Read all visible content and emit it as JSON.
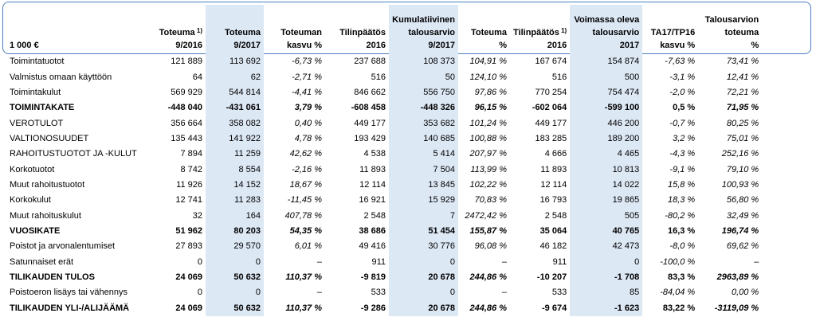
{
  "headers": [
    {
      "lines": [
        "",
        "1 000 €"
      ]
    },
    {
      "lines": [
        "Toteuma",
        "9/2016"
      ],
      "sup": "1)"
    },
    {
      "lines": [
        "Toteuma",
        "9/2017"
      ]
    },
    {
      "lines": [
        "Toteuman",
        "kasvu %"
      ]
    },
    {
      "lines": [
        "Tilinpäätös",
        "2016"
      ]
    },
    {
      "lines": [
        "Kumulatiivinen",
        "talousarvio",
        "9/2017"
      ]
    },
    {
      "lines": [
        "Toteuma",
        "%"
      ]
    },
    {
      "lines": [
        "Tilinpäätös",
        "2016"
      ],
      "sup": "1)"
    },
    {
      "lines": [
        "Voimassa oleva",
        "talousarvio",
        "2017"
      ]
    },
    {
      "lines": [
        "TA17/TP16",
        "kasvu %"
      ]
    },
    {
      "lines": [
        "Talousarvion",
        "toteuma",
        "%"
      ]
    }
  ],
  "rows": [
    {
      "bold": false,
      "cells": [
        "Toimintatuotot",
        "121 889",
        "113 692",
        "-6,73 %",
        "237 688",
        "108 373",
        "104,91 %",
        "167 674",
        "154 874",
        "-7,63 %",
        "73,41 %"
      ]
    },
    {
      "bold": false,
      "cells": [
        "Valmistus omaan käyttöön",
        "64",
        "62",
        "-2,71 %",
        "516",
        "50",
        "124,10 %",
        "516",
        "500",
        "-3,1 %",
        "12,41 %"
      ]
    },
    {
      "bold": false,
      "cells": [
        "Toimintakulut",
        "569 929",
        "544 814",
        "-4,41 %",
        "846 662",
        "556 750",
        "97,86 %",
        "770 254",
        "754 474",
        "-2,0 %",
        "72,21 %"
      ]
    },
    {
      "bold": true,
      "cells": [
        "TOIMINTAKATE",
        "-448 040",
        "-431 061",
        "3,79 %",
        "-608 458",
        "-448 326",
        "96,15 %",
        "-602 064",
        "-599 100",
        "0,5 %",
        "71,95 %"
      ]
    },
    {
      "bold": false,
      "cells": [
        "VEROTULOT",
        "356 664",
        "358 082",
        "0,40 %",
        "449 177",
        "353 682",
        "101,24 %",
        "449 177",
        "446 200",
        "-0,7 %",
        "80,25 %"
      ]
    },
    {
      "bold": false,
      "cells": [
        "VALTIONOSUUDET",
        "135 443",
        "141 922",
        "4,78 %",
        "193 429",
        "140 685",
        "100,88 %",
        "183 285",
        "189 200",
        "3,2 %",
        "75,01 %"
      ]
    },
    {
      "bold": false,
      "cells": [
        "RAHOITUSTUOTOT JA -KULUT",
        "7 894",
        "11 259",
        "42,62 %",
        "4 538",
        "5 414",
        "207,97 %",
        "4 666",
        "4 465",
        "-4,3 %",
        "252,16 %"
      ]
    },
    {
      "bold": false,
      "cells": [
        "Korkotuotot",
        "8 742",
        "8 554",
        "-2,16 %",
        "11 893",
        "7 504",
        "113,99 %",
        "11 893",
        "10 813",
        "-9,1 %",
        "79,10 %"
      ]
    },
    {
      "bold": false,
      "cells": [
        "Muut rahoitustuotot",
        "11 926",
        "14 152",
        "18,67 %",
        "12 114",
        "13 845",
        "102,22 %",
        "12 114",
        "14 022",
        "15,8 %",
        "100,93 %"
      ]
    },
    {
      "bold": false,
      "cells": [
        "Korkokulut",
        "12 741",
        "11 283",
        "-11,45 %",
        "16 921",
        "15 929",
        "70,83 %",
        "16 793",
        "19 865",
        "18,3 %",
        "56,80 %"
      ]
    },
    {
      "bold": false,
      "cells": [
        "Muut rahoituskulut",
        "32",
        "164",
        "407,78 %",
        "2 548",
        "7",
        "2472,42 %",
        "2 548",
        "505",
        "-80,2 %",
        "32,49 %"
      ]
    },
    {
      "bold": true,
      "cells": [
        "VUOSIKATE",
        "51 962",
        "80 203",
        "54,35 %",
        "38 686",
        "51 454",
        "155,87 %",
        "35 064",
        "40 765",
        "16,3 %",
        "196,74 %"
      ]
    },
    {
      "bold": false,
      "cells": [
        "Poistot ja arvonalentumiset",
        "27 893",
        "29 570",
        "6,01 %",
        "49 416",
        "30 776",
        "96,08 %",
        "46 182",
        "42 473",
        "-8,0 %",
        "69,62 %"
      ]
    },
    {
      "bold": false,
      "cells": [
        "Satunnaiset erät",
        "0",
        "0",
        "–",
        "911",
        "0",
        "–",
        "911",
        "0",
        "-100,0 %",
        "–"
      ]
    },
    {
      "bold": true,
      "cells": [
        "TILIKAUDEN TULOS",
        "24 069",
        "50 632",
        "110,37 %",
        "-9 819",
        "20 678",
        "244,86 %",
        "-10 207",
        "-1 708",
        "83,3 %",
        "2963,89 %"
      ]
    },
    {
      "bold": false,
      "cells": [
        "Poistoeron lisäys tai vähennys",
        "0",
        "0",
        "–",
        "533",
        "0",
        "–",
        "533",
        "85",
        "-84,04 %",
        "0,00 %"
      ]
    },
    {
      "bold": true,
      "cells": [
        "TILIKAUDEN YLI-/ALIJÄÄMÄ",
        "24 069",
        "50 632",
        "110,37 %",
        "-9 286",
        "20 678",
        "244,86 %",
        "-9 674",
        "-1 623",
        "83,22 %",
        "-3119,09 %"
      ]
    }
  ]
}
